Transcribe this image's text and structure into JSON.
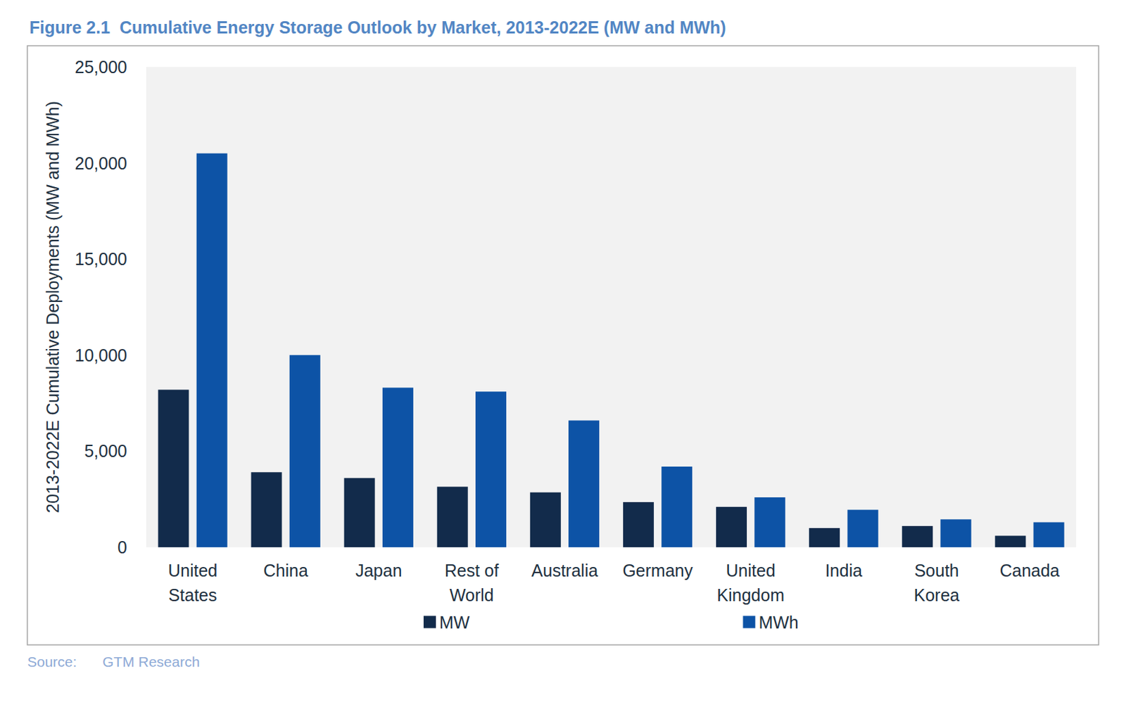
{
  "chart_data": {
    "type": "bar",
    "title": "Figure 2.1  Cumulative Energy Storage Outlook by Market, 2013-2022E (MW and MWh)",
    "y_label": "2013-2022E Cumulative Deployments (MW and MWh)",
    "source_label": "Source:",
    "source": "GTM Research",
    "categories": [
      "United\nStates",
      "China",
      "Japan",
      "Rest of\nWorld",
      "Australia",
      "Germany",
      "United\nKingdom",
      "India",
      "South\nKorea",
      "Canada"
    ],
    "series": [
      {
        "name": "MW",
        "color": "#122b4b",
        "values": [
          8200,
          3900,
          3600,
          3150,
          2850,
          2350,
          2100,
          1000,
          1100,
          600
        ]
      },
      {
        "name": "MWh",
        "color": "#0d53a6",
        "values": [
          20500,
          10000,
          8300,
          8100,
          6600,
          4200,
          2600,
          1950,
          1450,
          1300
        ]
      }
    ],
    "ylim": [
      0,
      25000
    ],
    "yticks": [
      0,
      {
        "value": 5000,
        "label": "5,000"
      },
      {
        "value": 10000,
        "label": "10,000"
      },
      {
        "value": 15000,
        "label": "15,000"
      },
      {
        "value": 20000,
        "label": "20,000"
      },
      {
        "value": 25000,
        "label": "25,000"
      }
    ],
    "grid": false,
    "legend": "bottom"
  }
}
